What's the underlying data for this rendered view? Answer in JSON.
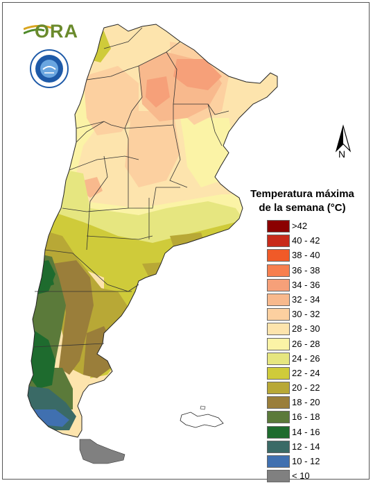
{
  "logos": {
    "ora_text": "ORA",
    "smn_icon": "smn-seal-icon"
  },
  "north_arrow": {
    "label": "N",
    "icon": "north-arrow-icon"
  },
  "legend": {
    "title_line1": "Temperatura máxima",
    "title_line2": "de la semana (°C)",
    "items": [
      {
        "label": ">42",
        "color": "#8b0000"
      },
      {
        "label": "40 - 42",
        "color": "#c82a1a"
      },
      {
        "label": "38 - 40",
        "color": "#f05a28"
      },
      {
        "label": "36 - 38",
        "color": "#f77f4e"
      },
      {
        "label": "34 - 36",
        "color": "#f6a079"
      },
      {
        "label": "32 - 34",
        "color": "#f8b98d"
      },
      {
        "label": "30 - 32",
        "color": "#fcd0a0"
      },
      {
        "label": "28 - 30",
        "color": "#fde4ad"
      },
      {
        "label": "26 - 28",
        "color": "#fbf3a6"
      },
      {
        "label": "24 - 26",
        "color": "#e6e680"
      },
      {
        "label": "22 - 24",
        "color": "#cfcb3a"
      },
      {
        "label": "20 - 22",
        "color": "#b8a836"
      },
      {
        "label": "18 - 20",
        "color": "#9a7e3a"
      },
      {
        "label": "16 - 18",
        "color": "#5b7a3a"
      },
      {
        "label": "14 - 16",
        "color": "#1e6b2e"
      },
      {
        "label": "12 - 14",
        "color": "#3a6a66"
      },
      {
        "label": "10 - 12",
        "color": "#4070b0"
      },
      {
        "label": "< 10",
        "color": "#808080"
      }
    ]
  }
}
